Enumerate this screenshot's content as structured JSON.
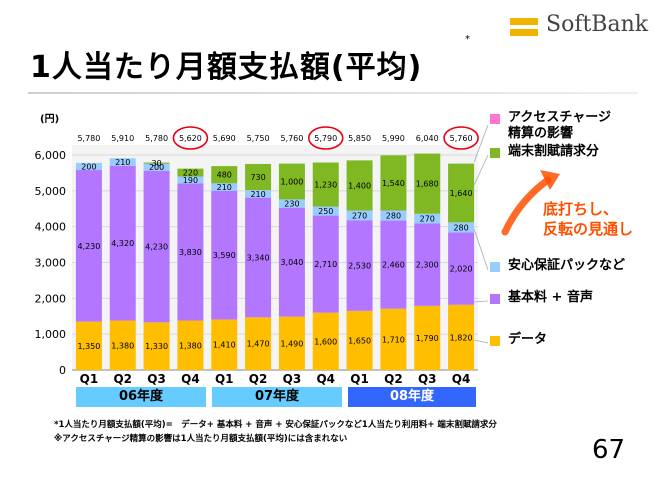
{
  "header": {
    "brand": "SoftBank",
    "title": "1人当たり月額支払額(平均)",
    "title_mark": "*"
  },
  "colors": {
    "data": "#ffbe00",
    "basic": "#b377ff",
    "security": "#99ccff",
    "installment": "#7fb822",
    "access": "#ff77cc",
    "circle": "#e60012",
    "callout": "#ff5000",
    "band_light": "#66ccff",
    "band_dark": "#3366ff"
  },
  "chart_data": {
    "type": "bar",
    "stacked": true,
    "ylabel": "(円)",
    "ylim": [
      0,
      6000
    ],
    "yticks": [
      "0",
      "1,000",
      "2,000",
      "3,000",
      "4,000",
      "5,000",
      "6,000"
    ],
    "categories": [
      "Q1",
      "Q2",
      "Q3",
      "Q4",
      "Q1",
      "Q2",
      "Q3",
      "Q4",
      "Q1",
      "Q2",
      "Q3",
      "Q4"
    ],
    "totals": [
      5780,
      5910,
      5780,
      5620,
      5690,
      5750,
      5760,
      5790,
      5850,
      5990,
      6040,
      5760
    ],
    "total_labels": [
      "5,780",
      "5,910",
      "5,780",
      "5,620",
      "5,690",
      "5,750",
      "5,760",
      "5,790",
      "5,850",
      "5,990",
      "6,040",
      "5,760"
    ],
    "circled": [
      false,
      false,
      false,
      true,
      false,
      false,
      false,
      true,
      false,
      false,
      false,
      true
    ],
    "series": [
      {
        "name": "データ",
        "key": "data",
        "values": [
          1350,
          1380,
          1330,
          1380,
          1410,
          1470,
          1490,
          1600,
          1650,
          1710,
          1790,
          1820
        ],
        "labels": [
          "1,350",
          "1,380",
          "1,330",
          "1,380",
          "1,410",
          "1,470",
          "1,490",
          "1,600",
          "1,650",
          "1,710",
          "1,790",
          "1,820"
        ]
      },
      {
        "name": "基本料 + 音声",
        "key": "basic",
        "values": [
          4230,
          4320,
          4230,
          3830,
          3590,
          3340,
          3040,
          2710,
          2530,
          2460,
          2300,
          2020
        ],
        "labels": [
          "4,230",
          "4,320",
          "4,230",
          "3,830",
          "3,590",
          "3,340",
          "3,040",
          "2,710",
          "2,530",
          "2,460",
          "2,300",
          "2,020"
        ]
      },
      {
        "name": "安心保証パックなど",
        "key": "security",
        "values": [
          200,
          210,
          200,
          190,
          210,
          210,
          230,
          250,
          270,
          280,
          270,
          280
        ],
        "labels": [
          "200",
          "210",
          "200",
          "190",
          "210",
          "210",
          "230",
          "250",
          "270",
          "280",
          "270",
          "280"
        ]
      },
      {
        "name": "端末割賦請求分",
        "key": "installment",
        "values": [
          0,
          0,
          30,
          220,
          480,
          730,
          1000,
          1230,
          1400,
          1540,
          1680,
          1640
        ],
        "labels": [
          "",
          "",
          "30",
          "220",
          "480",
          "730",
          "1,000",
          "1,230",
          "1,400",
          "1,540",
          "1,680",
          "1,640"
        ]
      },
      {
        "name": "アクセスチャージ精算の影響",
        "key": "access",
        "values": [
          0,
          0,
          0,
          0,
          0,
          0,
          0,
          0,
          0,
          0,
          0,
          0
        ],
        "labels": [
          "",
          "",
          "",
          "",
          "",
          "",
          "",
          "",
          "",
          "",
          "",
          ""
        ]
      }
    ],
    "year_groups": [
      "06年度",
      "07年度",
      "08年度"
    ]
  },
  "legend": {
    "access_line1": "アクセスチャージ",
    "access_line2": "精算の影響",
    "installment": "端末割賦請求分",
    "security": "安心保証パックなど",
    "basic": "基本料 + 音声",
    "data": "データ"
  },
  "callout": {
    "line1": "底打ちし、",
    "line2": "反転の見通し"
  },
  "footnotes": {
    "note1": "*1人当たり月額支払額(平均)=　データ+ 基本料 + 音声 + 安心保証パックなど1人当たり利用料+ 端末割賦請求分",
    "note2": "※アクセスチャージ精算の影響は1人当たり月額支払額(平均)には含まれない"
  },
  "page_number": "67"
}
